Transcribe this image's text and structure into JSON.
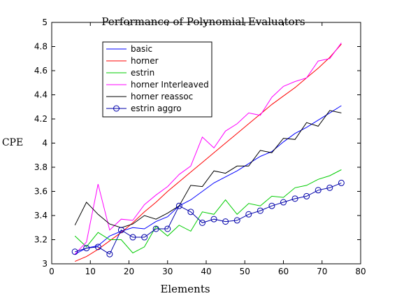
{
  "chart_data": {
    "type": "line",
    "title": "Performance of Polynomial Evaluators",
    "xlabel": "Elements",
    "ylabel": "CPE",
    "xlim": [
      0,
      80
    ],
    "ylim": [
      3,
      5
    ],
    "xticks": [
      0,
      10,
      20,
      30,
      40,
      50,
      60,
      70,
      80
    ],
    "yticks": [
      3,
      3.2,
      3.4,
      3.6,
      3.8,
      4,
      4.2,
      4.4,
      4.6,
      4.8,
      5
    ],
    "xtick_labels": [
      "0",
      "10",
      "20",
      "30",
      "40",
      "50",
      "60",
      "70",
      "80"
    ],
    "ytick_labels": [
      "3",
      "3.2",
      "3.4",
      "3.6",
      "3.8",
      "4",
      "4.2",
      "4.4",
      "4.6",
      "4.8",
      "5"
    ],
    "grid": false,
    "legend_position": "top-left",
    "x": [
      6,
      9,
      12,
      15,
      18,
      21,
      24,
      27,
      30,
      33,
      36,
      39,
      42,
      45,
      48,
      51,
      54,
      57,
      60,
      63,
      66,
      69,
      72,
      75
    ],
    "series": [
      {
        "name": "basic",
        "color": "#0000ff",
        "marker": "none",
        "values": [
          3.08,
          3.13,
          3.15,
          3.23,
          3.27,
          3.3,
          3.29,
          3.35,
          3.39,
          3.48,
          3.53,
          3.6,
          3.67,
          3.72,
          3.77,
          3.83,
          3.89,
          3.93,
          4.01,
          4.08,
          4.13,
          4.19,
          4.25,
          4.31
        ]
      },
      {
        "name": "horner",
        "color": "#ff0000",
        "marker": "none",
        "values": [
          3.02,
          3.06,
          3.12,
          3.19,
          3.26,
          3.34,
          3.43,
          3.51,
          3.6,
          3.68,
          3.76,
          3.84,
          3.92,
          4.0,
          4.08,
          4.16,
          4.24,
          4.32,
          4.39,
          4.46,
          4.54,
          4.62,
          4.71,
          4.82
        ]
      },
      {
        "name": "estrin",
        "color": "#00cc00",
        "marker": "none",
        "values": [
          3.23,
          3.14,
          3.26,
          3.2,
          3.2,
          3.09,
          3.14,
          3.31,
          3.23,
          3.32,
          3.27,
          3.43,
          3.41,
          3.53,
          3.41,
          3.5,
          3.48,
          3.56,
          3.55,
          3.63,
          3.65,
          3.7,
          3.73,
          3.78
        ]
      },
      {
        "name": "horner Interleaved",
        "color": "#ff00ff",
        "marker": "none",
        "values": [
          3.08,
          3.18,
          3.66,
          3.28,
          3.37,
          3.36,
          3.49,
          3.57,
          3.64,
          3.74,
          3.81,
          4.05,
          3.96,
          4.1,
          4.16,
          4.25,
          4.23,
          4.38,
          4.47,
          4.51,
          4.54,
          4.68,
          4.7,
          4.83
        ]
      },
      {
        "name": "horner reassoc",
        "color": "#000000",
        "marker": "none",
        "values": [
          3.32,
          3.51,
          3.41,
          3.33,
          3.3,
          3.33,
          3.4,
          3.37,
          3.42,
          3.48,
          3.65,
          3.64,
          3.77,
          3.75,
          3.81,
          3.81,
          3.94,
          3.92,
          4.04,
          4.03,
          4.17,
          4.14,
          4.27,
          4.25
        ]
      },
      {
        "name": "estrin aggro",
        "color": "#0000aa",
        "marker": "circle",
        "values": [
          3.1,
          3.13,
          3.14,
          3.08,
          3.28,
          3.22,
          3.22,
          3.29,
          3.29,
          3.48,
          3.43,
          3.34,
          3.37,
          3.35,
          3.36,
          3.41,
          3.44,
          3.48,
          3.51,
          3.54,
          3.56,
          3.61,
          3.63,
          3.67
        ]
      }
    ]
  }
}
